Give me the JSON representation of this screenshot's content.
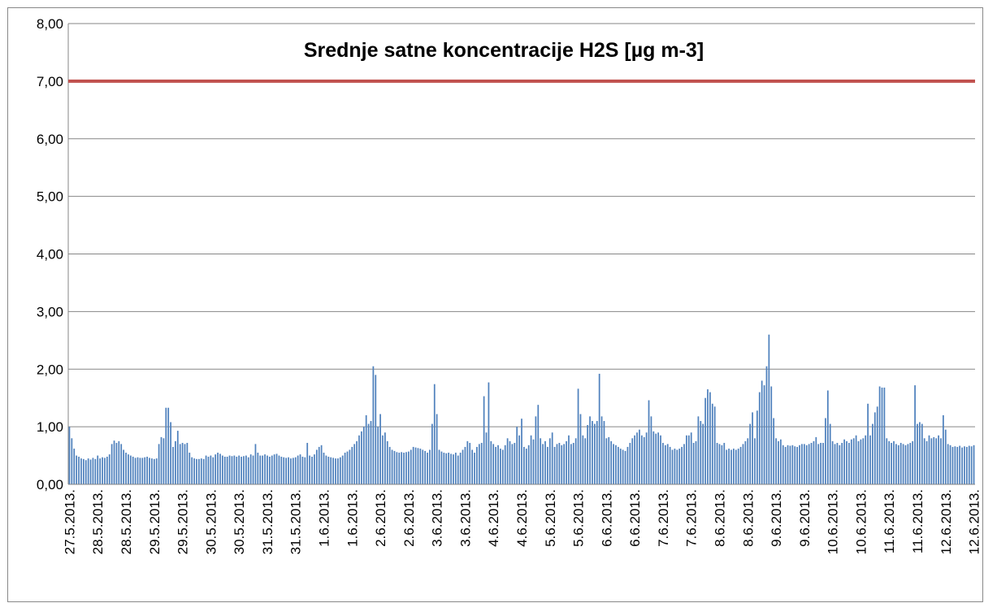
{
  "chart_data": {
    "type": "bar",
    "title": "Srednje satne koncentracije H2S [µg m-3]",
    "categories": [
      "27.5.2013.",
      null,
      null,
      null,
      null,
      null,
      null,
      null,
      null,
      null,
      null,
      null,
      "28.5.2013.",
      null,
      null,
      null,
      null,
      null,
      null,
      null,
      null,
      null,
      null,
      null,
      "28.5.2013.",
      null,
      null,
      null,
      null,
      null,
      null,
      null,
      null,
      null,
      null,
      null,
      "29.5.2013.",
      null,
      null,
      null,
      null,
      null,
      null,
      null,
      null,
      null,
      null,
      null,
      "29.5.2013.",
      null,
      null,
      null,
      null,
      null,
      null,
      null,
      null,
      null,
      null,
      null,
      "30.5.2013.",
      null,
      null,
      null,
      null,
      null,
      null,
      null,
      null,
      null,
      null,
      null,
      "30.5.2013.",
      null,
      null,
      null,
      null,
      null,
      null,
      null,
      null,
      null,
      null,
      null,
      "31.5.2013.",
      null,
      null,
      null,
      null,
      null,
      null,
      null,
      null,
      null,
      null,
      null,
      "31.5.2013.",
      null,
      null,
      null,
      null,
      null,
      null,
      null,
      null,
      null,
      null,
      null,
      "1.6.2013.",
      null,
      null,
      null,
      null,
      null,
      null,
      null,
      null,
      null,
      null,
      null,
      "1.6.2013.",
      null,
      null,
      null,
      null,
      null,
      null,
      null,
      null,
      null,
      null,
      null,
      "2.6.2013.",
      null,
      null,
      null,
      null,
      null,
      null,
      null,
      null,
      null,
      null,
      null,
      "2.6.2013.",
      null,
      null,
      null,
      null,
      null,
      null,
      null,
      null,
      null,
      null,
      null,
      "3.6.2013.",
      null,
      null,
      null,
      null,
      null,
      null,
      null,
      null,
      null,
      null,
      null,
      "3.6.2013.",
      null,
      null,
      null,
      null,
      null,
      null,
      null,
      null,
      null,
      null,
      null,
      "4.6.2013.",
      null,
      null,
      null,
      null,
      null,
      null,
      null,
      null,
      null,
      null,
      null,
      "4.6.2013.",
      null,
      null,
      null,
      null,
      null,
      null,
      null,
      null,
      null,
      null,
      null,
      "5.6.2013.",
      null,
      null,
      null,
      null,
      null,
      null,
      null,
      null,
      null,
      null,
      null,
      "5.6.2013.",
      null,
      null,
      null,
      null,
      null,
      null,
      null,
      null,
      null,
      null,
      null,
      "6.6.2013.",
      null,
      null,
      null,
      null,
      null,
      null,
      null,
      null,
      null,
      null,
      null,
      "6.6.2013.",
      null,
      null,
      null,
      null,
      null,
      null,
      null,
      null,
      null,
      null,
      null,
      "7.6.2013.",
      null,
      null,
      null,
      null,
      null,
      null,
      null,
      null,
      null,
      null,
      null,
      "7.6.2013.",
      null,
      null,
      null,
      null,
      null,
      null,
      null,
      null,
      null,
      null,
      null,
      "8.6.2013.",
      null,
      null,
      null,
      null,
      null,
      null,
      null,
      null,
      null,
      null,
      null,
      "8.6.2013.",
      null,
      null,
      null,
      null,
      null,
      null,
      null,
      null,
      null,
      null,
      null,
      "9.6.2013.",
      null,
      null,
      null,
      null,
      null,
      null,
      null,
      null,
      null,
      null,
      null,
      "9.6.2013.",
      null,
      null,
      null,
      null,
      null,
      null,
      null,
      null,
      null,
      null,
      null,
      "10.6.2013.",
      null,
      null,
      null,
      null,
      null,
      null,
      null,
      null,
      null,
      null,
      null,
      "10.6.2013.",
      null,
      null,
      null,
      null,
      null,
      null,
      null,
      null,
      null,
      null,
      null,
      "11.6.2013.",
      null,
      null,
      null,
      null,
      null,
      null,
      null,
      null,
      null,
      null,
      null,
      "11.6.2013.",
      null,
      null,
      null,
      null,
      null,
      null,
      null,
      null,
      null,
      null,
      null,
      "12.6.2013.",
      null,
      null,
      null,
      null,
      null,
      null,
      null,
      null,
      null,
      null,
      null,
      "12.6.2013."
    ],
    "values": [
      1.0,
      0.8,
      0.62,
      0.5,
      0.48,
      0.45,
      0.44,
      0.42,
      0.45,
      0.43,
      0.46,
      0.44,
      0.5,
      0.45,
      0.47,
      0.46,
      0.48,
      0.52,
      0.7,
      0.76,
      0.72,
      0.75,
      0.7,
      0.6,
      0.55,
      0.52,
      0.5,
      0.48,
      0.46,
      0.47,
      0.46,
      0.46,
      0.47,
      0.48,
      0.46,
      0.45,
      0.44,
      0.45,
      0.7,
      0.82,
      0.8,
      1.33,
      1.33,
      1.08,
      0.65,
      0.75,
      0.93,
      0.7,
      0.72,
      0.7,
      0.72,
      0.55,
      0.47,
      0.45,
      0.44,
      0.44,
      0.45,
      0.44,
      0.5,
      0.48,
      0.5,
      0.47,
      0.52,
      0.55,
      0.53,
      0.5,
      0.48,
      0.48,
      0.5,
      0.49,
      0.5,
      0.48,
      0.5,
      0.48,
      0.49,
      0.5,
      0.47,
      0.52,
      0.5,
      0.7,
      0.55,
      0.5,
      0.5,
      0.52,
      0.5,
      0.48,
      0.5,
      0.52,
      0.53,
      0.5,
      0.48,
      0.47,
      0.46,
      0.47,
      0.45,
      0.46,
      0.47,
      0.5,
      0.52,
      0.48,
      0.47,
      0.72,
      0.5,
      0.48,
      0.52,
      0.6,
      0.65,
      0.68,
      0.55,
      0.5,
      0.48,
      0.47,
      0.46,
      0.45,
      0.45,
      0.47,
      0.5,
      0.55,
      0.57,
      0.6,
      0.65,
      0.7,
      0.75,
      0.85,
      0.92,
      1.0,
      1.2,
      1.05,
      1.1,
      2.05,
      1.9,
      1.0,
      1.22,
      0.85,
      0.9,
      0.75,
      0.65,
      0.6,
      0.58,
      0.56,
      0.55,
      0.56,
      0.55,
      0.56,
      0.57,
      0.6,
      0.65,
      0.64,
      0.63,
      0.62,
      0.6,
      0.58,
      0.55,
      0.6,
      1.05,
      1.74,
      1.22,
      0.6,
      0.57,
      0.55,
      0.54,
      0.55,
      0.53,
      0.52,
      0.55,
      0.5,
      0.55,
      0.6,
      0.65,
      0.75,
      0.72,
      0.6,
      0.55,
      0.65,
      0.7,
      0.72,
      1.53,
      0.9,
      1.77,
      0.75,
      0.7,
      0.65,
      0.68,
      0.62,
      0.6,
      0.68,
      0.8,
      0.75,
      0.7,
      0.72,
      1.0,
      0.85,
      1.14,
      0.65,
      0.62,
      0.68,
      0.85,
      0.78,
      1.18,
      1.38,
      0.8,
      0.7,
      0.75,
      0.65,
      0.8,
      0.9,
      0.65,
      0.7,
      0.72,
      0.68,
      0.7,
      0.75,
      0.85,
      0.7,
      0.72,
      0.8,
      1.66,
      1.22,
      0.85,
      0.8,
      1.03,
      1.18,
      1.1,
      1.05,
      1.1,
      1.92,
      1.18,
      1.1,
      0.8,
      0.82,
      0.75,
      0.7,
      0.68,
      0.65,
      0.62,
      0.6,
      0.58,
      0.65,
      0.72,
      0.8,
      0.85,
      0.9,
      0.95,
      0.85,
      0.82,
      0.9,
      1.46,
      1.18,
      0.92,
      0.88,
      0.9,
      0.85,
      0.72,
      0.68,
      0.7,
      0.65,
      0.6,
      0.62,
      0.6,
      0.62,
      0.65,
      0.7,
      0.85,
      0.85,
      0.9,
      0.72,
      0.75,
      1.18,
      1.1,
      1.05,
      1.5,
      1.65,
      1.6,
      1.4,
      1.35,
      0.72,
      0.7,
      0.68,
      0.72,
      0.6,
      0.62,
      0.6,
      0.62,
      0.6,
      0.62,
      0.65,
      0.7,
      0.75,
      0.8,
      1.05,
      1.25,
      0.8,
      1.28,
      1.6,
      1.8,
      1.72,
      2.05,
      2.6,
      1.7,
      1.15,
      0.8,
      0.75,
      0.78,
      0.68,
      0.65,
      0.68,
      0.67,
      0.68,
      0.66,
      0.65,
      0.68,
      0.7,
      0.7,
      0.68,
      0.7,
      0.72,
      0.75,
      0.82,
      0.7,
      0.72,
      0.72,
      1.15,
      1.63,
      1.05,
      0.75,
      0.7,
      0.72,
      0.68,
      0.72,
      0.78,
      0.75,
      0.72,
      0.78,
      0.8,
      0.85,
      0.75,
      0.78,
      0.8,
      0.85,
      1.4,
      0.85,
      1.05,
      1.25,
      1.35,
      1.7,
      1.68,
      1.68,
      0.8,
      0.75,
      0.72,
      0.75,
      0.7,
      0.68,
      0.72,
      0.7,
      0.68,
      0.7,
      0.72,
      0.75,
      1.72,
      1.05,
      1.08,
      1.05,
      0.8,
      0.75,
      0.85,
      0.8,
      0.82,
      0.8,
      0.85,
      0.8,
      1.2,
      0.95,
      0.7,
      0.68,
      0.65,
      0.66,
      0.65,
      0.67,
      0.64,
      0.66,
      0.65,
      0.67,
      0.66,
      0.68
    ],
    "color": "#4f81bd",
    "reference_lines": [
      {
        "value": 7,
        "color": "#c0504d"
      }
    ],
    "ylim": [
      0,
      8
    ],
    "yticks": [
      {
        "value": 0,
        "label": "0,00"
      },
      {
        "value": 1,
        "label": "1,00"
      },
      {
        "value": 2,
        "label": "2,00"
      },
      {
        "value": 3,
        "label": "3,00"
      },
      {
        "value": 4,
        "label": "4,00"
      },
      {
        "value": 5,
        "label": "5,00"
      },
      {
        "value": 6,
        "label": "6,00"
      },
      {
        "value": 7,
        "label": "7,00"
      },
      {
        "value": 8,
        "label": "8,00"
      }
    ],
    "grid": true
  }
}
